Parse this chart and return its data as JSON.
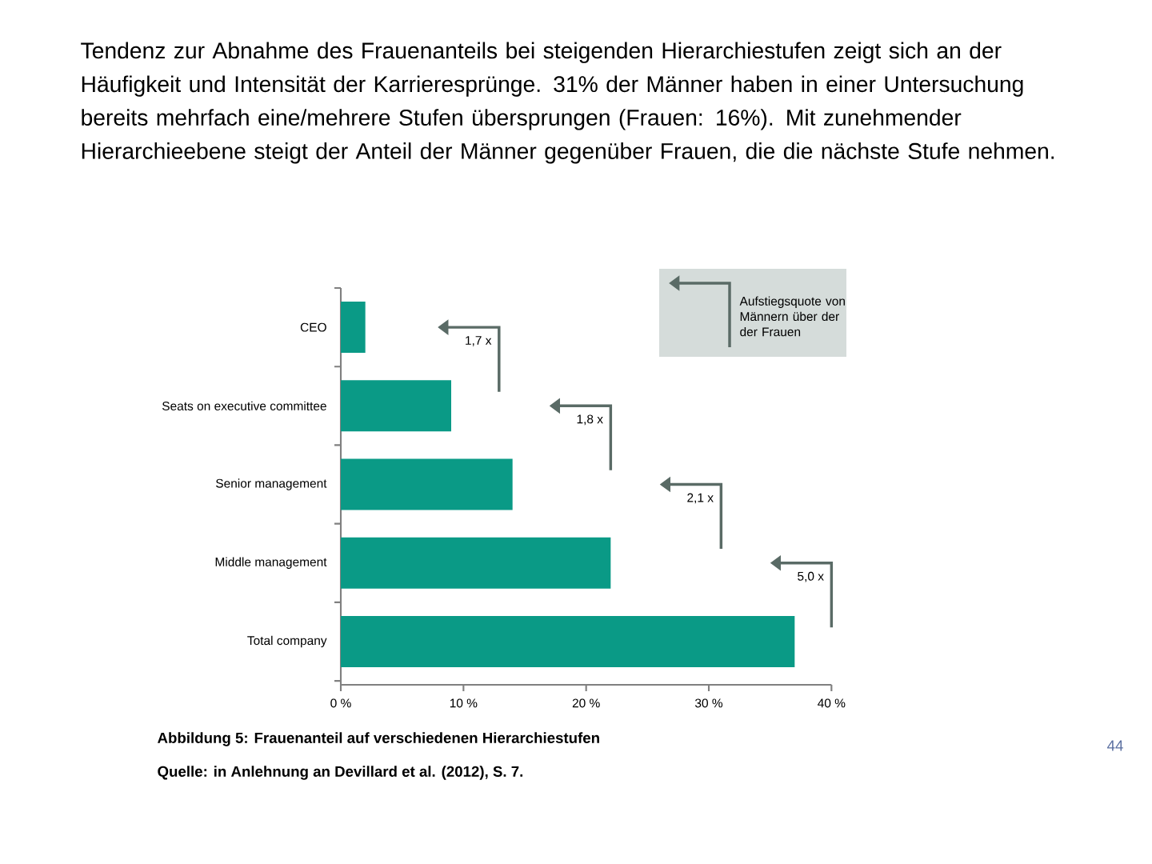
{
  "chart_data": {
    "type": "bar",
    "orientation": "horizontal",
    "title": "Tendenz zur Abnahme des Frauenanteils bei steigenden Hierarchiestufen zeigt sich an der Häufigkeit und Intensität der Karrieresprünge. 31% der Männer haben in einer Untersuchung bereits mehrfach eine/mehrere Stufen übersprungen (Frauen: 16%). Mit zunehmender Hierarchieebene steigt der Anteil der Männer gegenüber Frauen, die die nächste Stufe nehmen.",
    "categories": [
      "CEO",
      "Seats on executive committee",
      "Senior management",
      "Middle management",
      "Total company"
    ],
    "values": [
      2,
      9,
      14,
      22,
      37
    ],
    "color": "#0a9a86",
    "xlim": [
      0,
      40
    ],
    "xticks": [
      {
        "value": 0,
        "label": "0 %"
      },
      {
        "value": 10,
        "label": "10 %"
      },
      {
        "value": 20,
        "label": "20 %"
      },
      {
        "value": 30,
        "label": "30 %"
      },
      {
        "value": 40,
        "label": "40 %"
      }
    ],
    "annotations": [
      "1,7 x",
      "1,8 x",
      "2,1 x",
      "5,0 x",
      "Aufstiegsquote von Männern über der der Frauen",
      "Abbildung 5: Frauenanteil auf verschiedenen Hierarchiestufen",
      "Quelle: in Anlehnung an Devillard et al. (2012), S. 7.",
      "44"
    ]
  }
}
